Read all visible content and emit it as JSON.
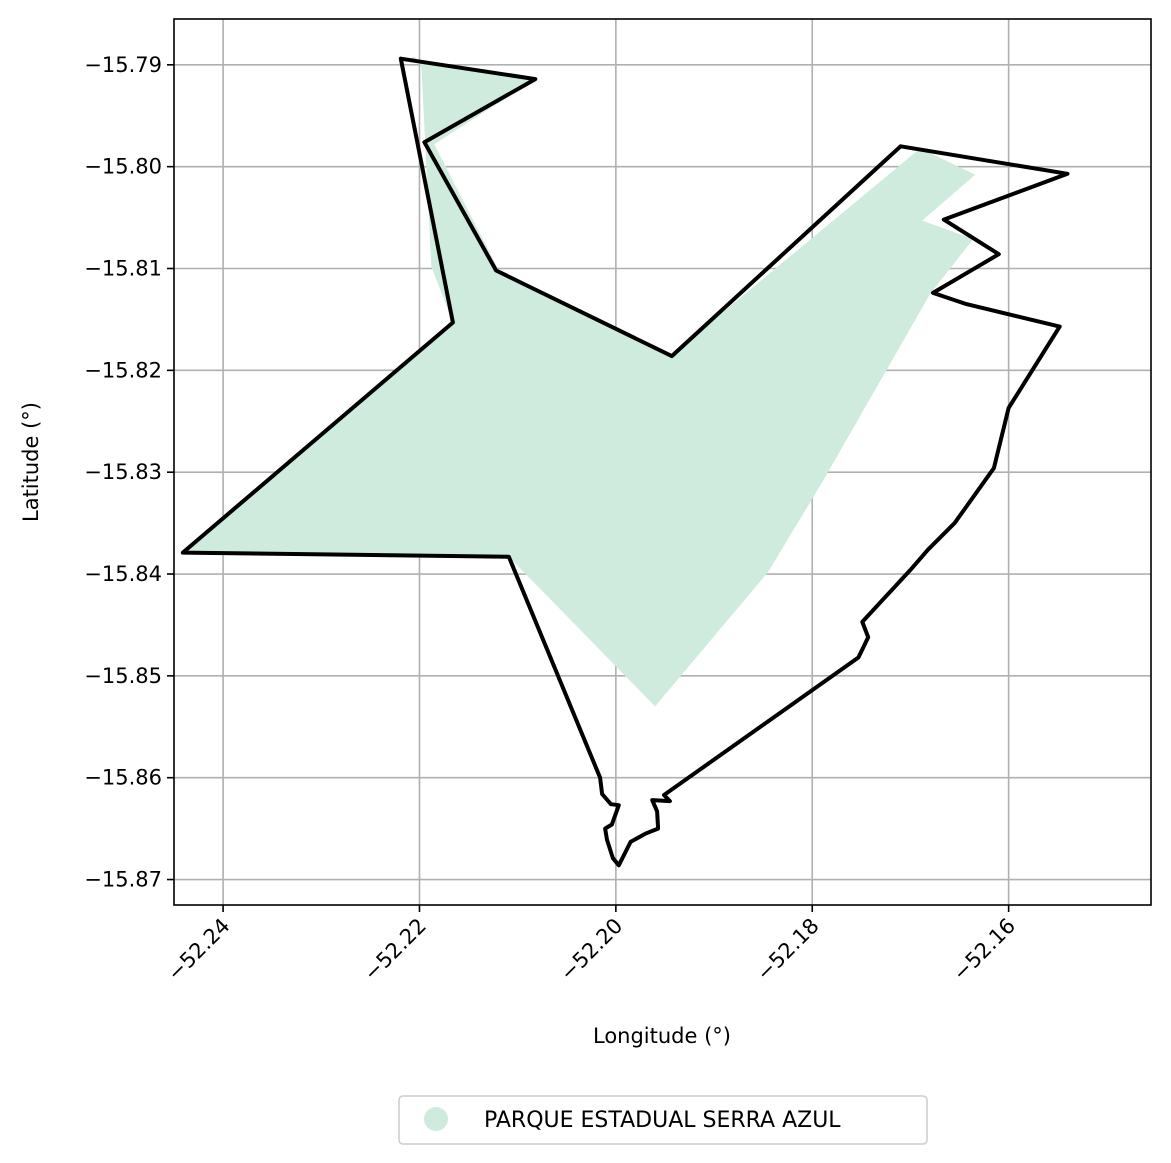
{
  "chart_data": {
    "type": "map",
    "xlabel": "Longitude (°)",
    "ylabel": "Latitude (°)",
    "xlim": [
      -52.245,
      -52.1455
    ],
    "ylim": [
      -15.8725,
      -15.7855
    ],
    "grid": true,
    "x_ticks": [
      -52.24,
      -52.22,
      -52.2,
      -52.18,
      -52.16
    ],
    "x_tick_labels": [
      "−52.24",
      "−52.22",
      "−52.20",
      "−52.18",
      "−52.16"
    ],
    "y_ticks": [
      -15.79,
      -15.8,
      -15.81,
      -15.82,
      -15.83,
      -15.84,
      -15.85,
      -15.86,
      -15.87
    ],
    "y_tick_labels": [
      "−15.79",
      "−15.80",
      "−15.81",
      "−15.82",
      "−15.83",
      "−15.84",
      "−15.85",
      "−15.86",
      "−15.87"
    ],
    "legend": {
      "placement": "bottom-center",
      "entries": [
        {
          "label": "PARQUE ESTADUAL SERRA AZUL",
          "color": "#cfebdd"
        }
      ]
    },
    "fill_color": "#cfebdd",
    "outline_color": "#000000",
    "fill_region": [
      [
        -52.2215,
        -15.7895
      ],
      [
        -52.2205,
        -15.7892
      ],
      [
        -52.2198,
        -15.7902
      ],
      [
        -52.2188,
        -15.8098
      ],
      [
        -52.2166,
        -15.8153
      ],
      [
        -52.244,
        -15.8379
      ],
      [
        -52.2109,
        -15.8383
      ],
      [
        -52.196,
        -15.853
      ],
      [
        -52.1845,
        -15.8398
      ],
      [
        -52.179,
        -15.831
      ],
      [
        -52.168,
        -15.8125
      ],
      [
        -52.1636,
        -15.8071
      ],
      [
        -52.1688,
        -15.8053
      ],
      [
        -52.1634,
        -15.8008
      ],
      [
        -52.169,
        -15.7982
      ],
      [
        -52.1945,
        -15.8186
      ],
      [
        -52.2118,
        -15.8104
      ],
      [
        -52.2185,
        -15.7978
      ],
      [
        -52.2082,
        -15.7914
      ]
    ],
    "outline": [
      [
        -52.2219,
        -15.7894
      ],
      [
        -52.2082,
        -15.7914
      ],
      [
        -52.2195,
        -15.7976
      ],
      [
        -52.2122,
        -15.8102
      ],
      [
        -52.1943,
        -15.8186
      ],
      [
        -52.171,
        -15.798
      ],
      [
        -52.154,
        -15.8007
      ],
      [
        -52.1666,
        -15.8052
      ],
      [
        -52.161,
        -15.8086
      ],
      [
        -52.1677,
        -15.8124
      ],
      [
        -52.1643,
        -15.8135
      ],
      [
        -52.1548,
        -15.8157
      ],
      [
        -52.16,
        -15.8237
      ],
      [
        -52.1615,
        -15.8296
      ],
      [
        -52.1655,
        -15.835
      ],
      [
        -52.1682,
        -15.8376
      ],
      [
        -52.17,
        -15.8396
      ],
      [
        -52.1749,
        -15.8447
      ],
      [
        -52.1743,
        -15.8462
      ],
      [
        -52.1753,
        -15.8482
      ],
      [
        -52.1951,
        -15.8617
      ],
      [
        -52.1945,
        -15.8623
      ],
      [
        -52.1963,
        -15.8622
      ],
      [
        -52.1958,
        -15.8633
      ],
      [
        -52.1957,
        -15.865
      ],
      [
        -52.197,
        -15.8655
      ],
      [
        -52.1985,
        -15.8663
      ],
      [
        -52.1997,
        -15.8686
      ],
      [
        -52.2003,
        -15.8679
      ],
      [
        -52.2009,
        -15.8661
      ],
      [
        -52.2011,
        -15.865
      ],
      [
        -52.2004,
        -15.8646
      ],
      [
        -52.1997,
        -15.8627
      ],
      [
        -52.2005,
        -15.8626
      ],
      [
        -52.2014,
        -15.8616
      ],
      [
        -52.2016,
        -15.86
      ],
      [
        -52.2109,
        -15.8383
      ],
      [
        -52.2441,
        -15.8379
      ],
      [
        -52.2166,
        -15.8153
      ],
      [
        -52.2219,
        -15.7894
      ]
    ]
  }
}
